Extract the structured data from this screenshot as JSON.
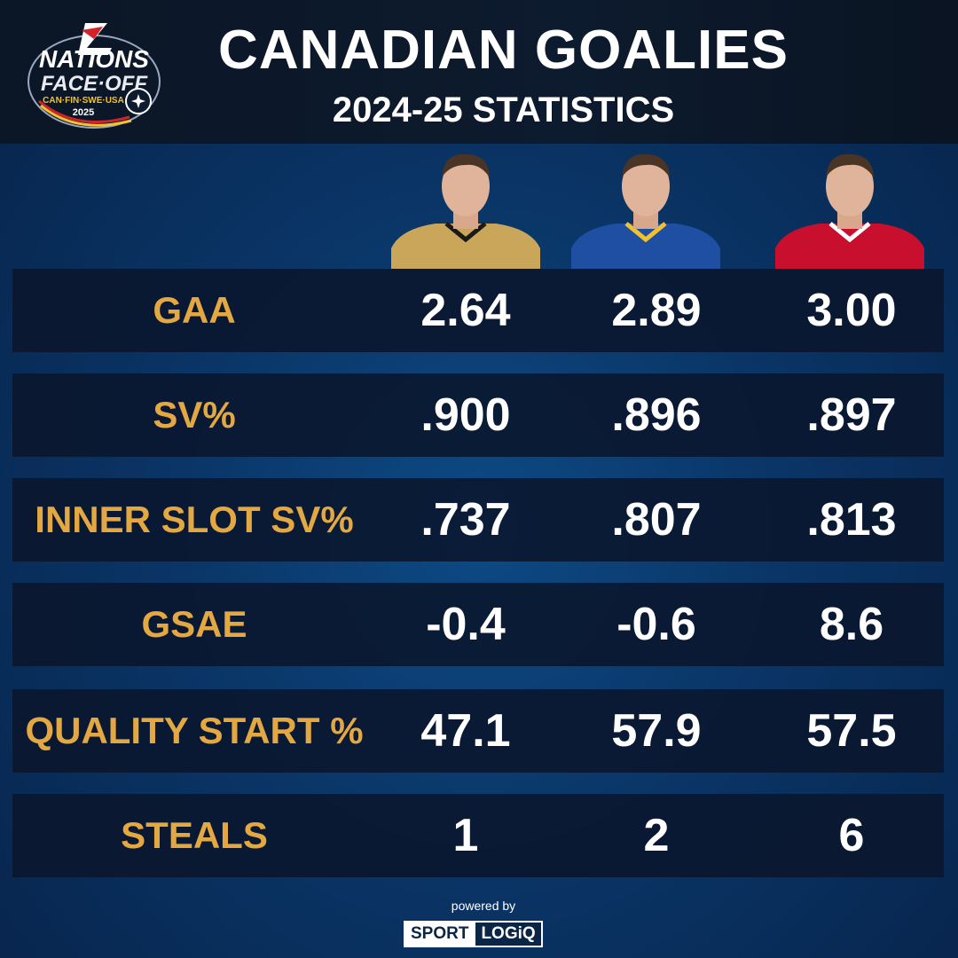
{
  "header": {
    "title": "CANADIAN GOALIES",
    "subtitle": "2024-25 STATISTICS",
    "logo": {
      "text": "4 NATIONS FACE-OFF CAN·FIN·SWE·USA 2025"
    }
  },
  "colors": {
    "label": "#e4a843",
    "value": "#ffffff",
    "row_bg": "#0a162c",
    "background": "#0a3566"
  },
  "players": [
    {
      "jersey": "gold"
    },
    {
      "jersey": "blue"
    },
    {
      "jersey": "red"
    }
  ],
  "chart_data": {
    "type": "table",
    "title": "CANADIAN GOALIES",
    "rows": [
      {
        "label": "GAA",
        "values": [
          "2.64",
          "2.89",
          "3.00"
        ]
      },
      {
        "label": "SV%",
        "values": [
          ".900",
          ".896",
          ".897"
        ]
      },
      {
        "label": "INNER SLOT SV%",
        "values": [
          ".737",
          ".807",
          ".813"
        ]
      },
      {
        "label": "GSAE",
        "values": [
          "-0.4",
          "-0.6",
          "8.6"
        ]
      },
      {
        "label": "QUALITY START %",
        "values": [
          "47.1",
          "57.9",
          "57.5"
        ]
      },
      {
        "label": "STEALS",
        "values": [
          "1",
          "2",
          "6"
        ]
      }
    ]
  },
  "footer": {
    "powered": "powered by",
    "brand1": "SPORT",
    "brand2": "LOGiQ"
  }
}
